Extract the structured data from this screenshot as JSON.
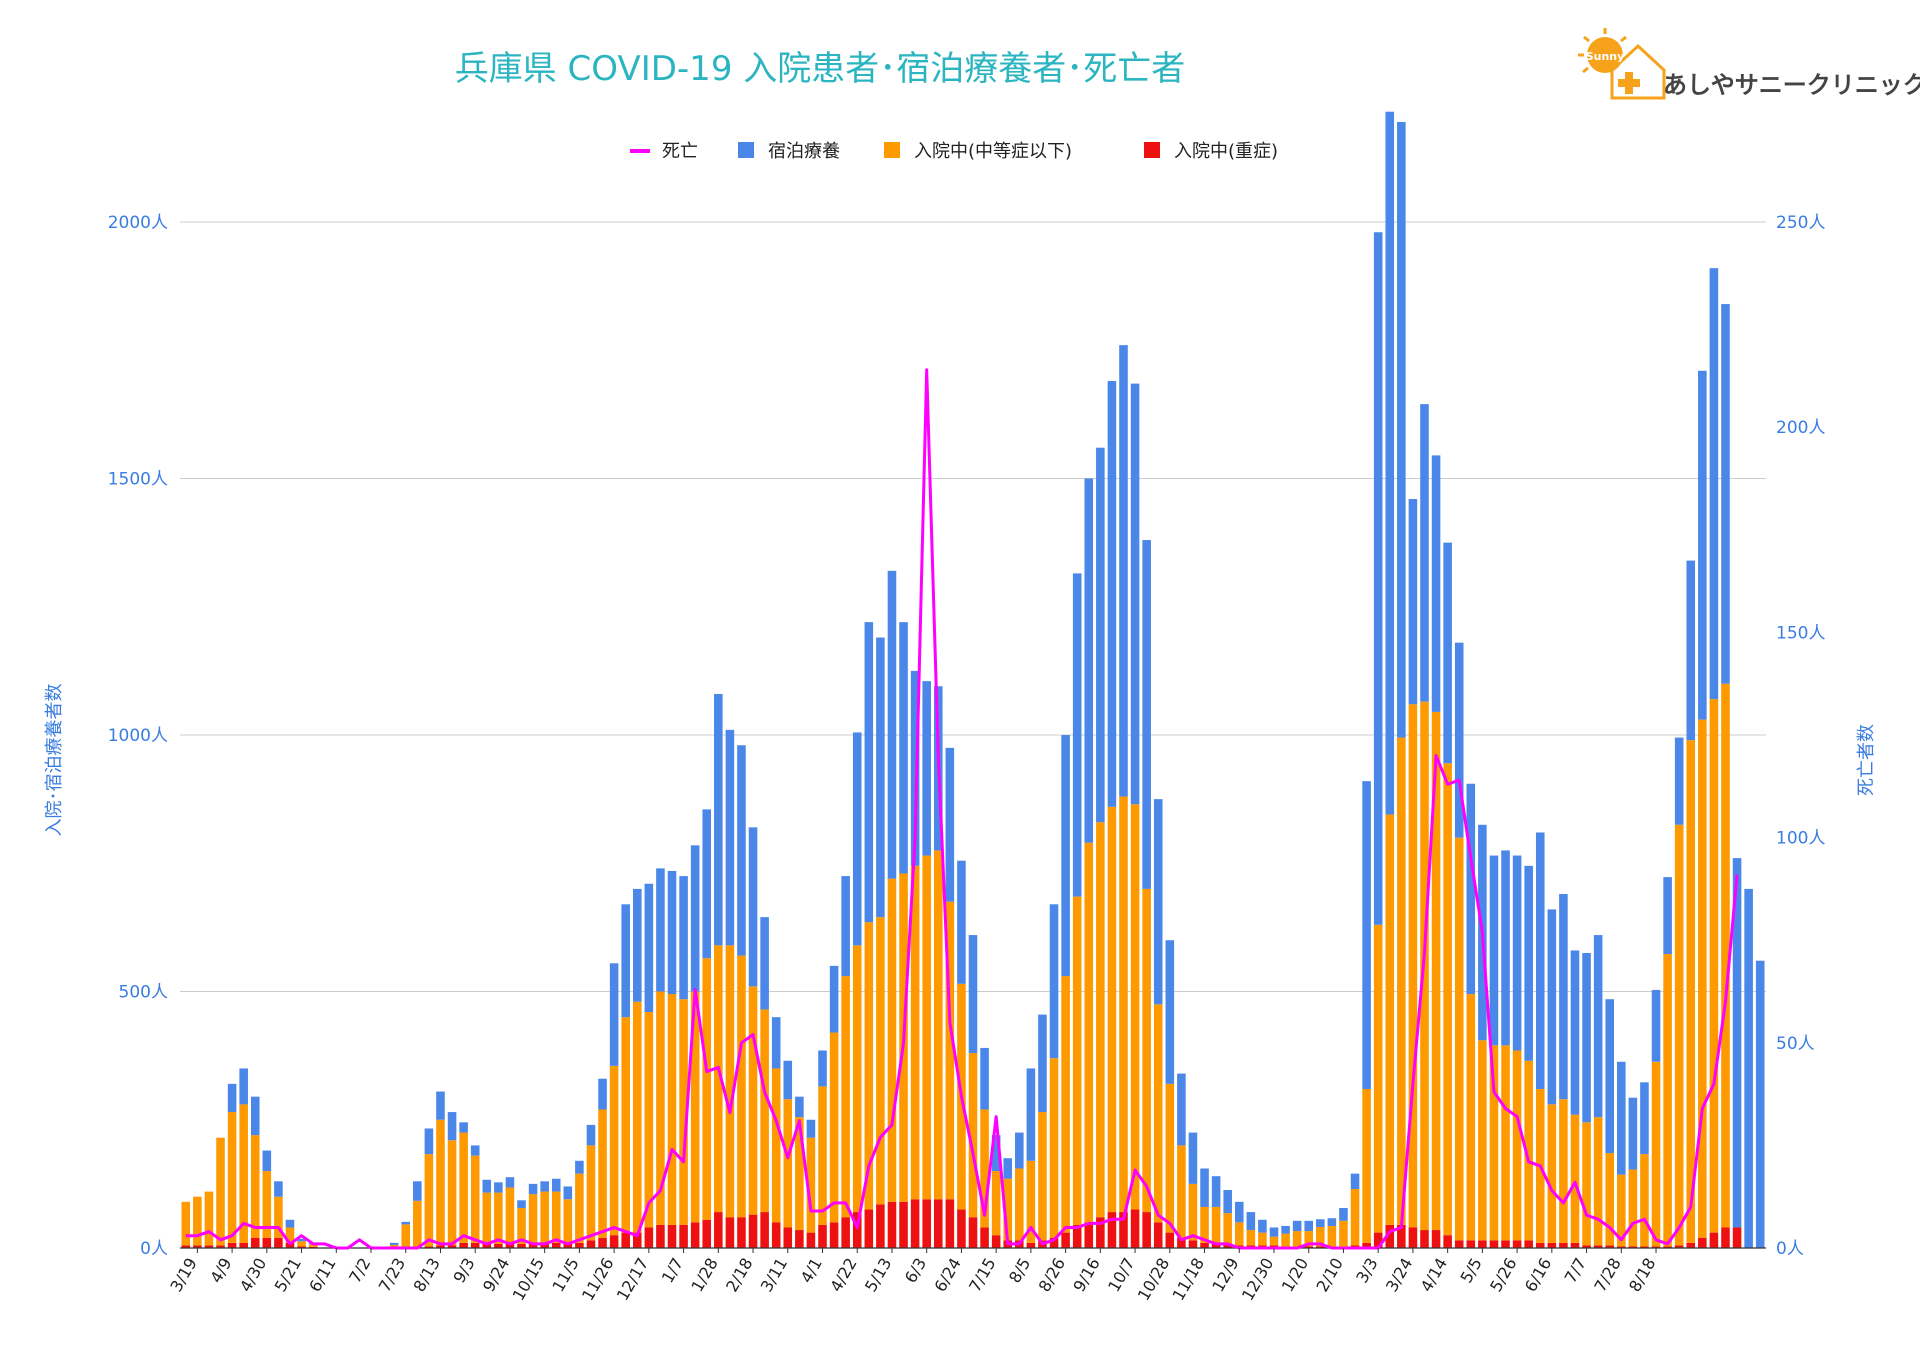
{
  "chart_data": {
    "type": "bar",
    "stacked": true,
    "title": "兵庫県  COVID-19 入院患者･宿泊療養者･死亡者",
    "ylabel": "入院･宿泊療養者数",
    "y2label": "死亡者数",
    "ylim": [
      0,
      2000
    ],
    "y2lim": [
      0,
      250
    ],
    "yticks": [
      "0人",
      "500人",
      "1000人",
      "1500人",
      "2000人"
    ],
    "y2ticks": [
      "0人",
      "50人",
      "100人",
      "150人",
      "200人",
      "250人"
    ],
    "grid": true,
    "legend_position": "top",
    "series": [
      {
        "name": "死亡",
        "type": "line",
        "axis": "right",
        "color": "#ff00ff",
        "values": [
          3,
          3,
          4,
          2,
          3,
          6,
          5,
          5,
          5,
          1,
          3,
          1,
          1,
          0,
          0,
          2,
          0,
          0,
          0,
          0,
          0,
          2,
          1,
          1,
          3,
          2,
          1,
          2,
          1,
          2,
          1,
          1,
          2,
          1,
          2,
          3,
          4,
          5,
          4,
          3,
          11,
          14,
          24,
          21,
          63,
          43,
          44,
          33,
          50,
          52,
          38,
          31,
          22,
          31,
          9,
          9,
          11,
          11,
          5,
          20,
          27,
          30,
          50,
          100,
          214,
          120,
          55,
          37,
          23,
          8,
          32,
          1,
          1,
          5,
          1,
          2,
          5,
          5,
          6,
          6,
          7,
          7,
          19,
          15,
          8,
          6,
          2,
          3,
          2,
          1,
          1,
          0,
          0,
          0,
          0,
          0,
          0,
          1,
          1,
          0,
          0,
          0,
          0,
          0,
          4,
          5,
          40,
          72,
          120,
          113,
          114,
          95,
          77,
          38,
          34,
          32,
          21,
          20,
          14,
          11,
          16,
          8,
          7,
          5,
          2,
          6,
          7,
          2,
          1,
          5,
          10,
          34,
          40,
          60,
          91
        ]
      },
      {
        "name": "宿泊療養",
        "color": "#4a87e8",
        "values": [
          0,
          0,
          0,
          0,
          55,
          70,
          75,
          40,
          30,
          15,
          5,
          3,
          0,
          0,
          0,
          0,
          0,
          0,
          4,
          5,
          38,
          50,
          55,
          55,
          20,
          20,
          25,
          20,
          20,
          15,
          20,
          20,
          25,
          25,
          25,
          40,
          60,
          200,
          220,
          220,
          250,
          240,
          240,
          240,
          285,
          290,
          490,
          420,
          410,
          310,
          180,
          100,
          75,
          40,
          35,
          70,
          130,
          195,
          415,
          585,
          545,
          600,
          490,
          380,
          340,
          320,
          300,
          240,
          230,
          120,
          70,
          40,
          70,
          180,
          190,
          300,
          470,
          630,
          710,
          730,
          830,
          880,
          820,
          680,
          400,
          280,
          140,
          100,
          75,
          60,
          45,
          40,
          35,
          25,
          18,
          15,
          20,
          20,
          15,
          15,
          25,
          30,
          600,
          1350,
          1370,
          1200,
          400,
          580,
          500,
          430,
          380,
          410,
          420,
          370,
          380,
          380,
          380,
          500,
          380,
          400,
          320,
          330,
          355,
          300,
          220,
          140,
          140,
          140,
          150,
          170,
          350,
          680,
          840,
          740,
          720,
          700,
          560
        ]
      },
      {
        "name": "入院中(中等症以下)",
        "color": "#ff9900",
        "values": [
          85,
          95,
          105,
          210,
          255,
          270,
          200,
          130,
          80,
          30,
          10,
          5,
          0,
          0,
          0,
          0,
          0,
          0,
          5,
          45,
          90,
          180,
          245,
          205,
          215,
          170,
          100,
          100,
          110,
          70,
          95,
          100,
          100,
          85,
          135,
          185,
          250,
          330,
          420,
          450,
          420,
          455,
          450,
          440,
          450,
          510,
          520,
          530,
          510,
          445,
          395,
          300,
          250,
          220,
          185,
          270,
          370,
          470,
          520,
          560,
          560,
          630,
          640,
          650,
          670,
          680,
          580,
          440,
          320,
          230,
          125,
          120,
          140,
          160,
          250,
          350,
          500,
          640,
          740,
          770,
          790,
          810,
          790,
          630,
          425,
          290,
          180,
          110,
          70,
          70,
          60,
          45,
          30,
          25,
          17,
          25,
          30,
          30,
          38,
          40,
          50,
          110,
          300,
          600,
          800,
          950,
          1020,
          1030,
          1010,
          920,
          785,
          480,
          390,
          380,
          380,
          370,
          350,
          300,
          270,
          280,
          250,
          240,
          250,
          180,
          140,
          150,
          180,
          360,
          570,
          820,
          980,
          1010,
          1040,
          1060
        ]
      },
      {
        "name": "入院中(重症)",
        "color": "#ee1111",
        "values": [
          5,
          5,
          5,
          5,
          10,
          10,
          20,
          20,
          20,
          10,
          3,
          2,
          0,
          0,
          0,
          0,
          0,
          0,
          1,
          1,
          2,
          3,
          5,
          5,
          10,
          10,
          8,
          8,
          8,
          8,
          10,
          10,
          10,
          10,
          10,
          15,
          20,
          25,
          30,
          30,
          40,
          45,
          45,
          45,
          50,
          55,
          70,
          60,
          60,
          65,
          70,
          50,
          40,
          35,
          30,
          45,
          50,
          60,
          70,
          75,
          85,
          90,
          90,
          95,
          95,
          95,
          95,
          75,
          60,
          40,
          25,
          15,
          15,
          10,
          15,
          20,
          30,
          45,
          50,
          60,
          70,
          70,
          75,
          70,
          50,
          30,
          20,
          15,
          10,
          10,
          8,
          5,
          5,
          5,
          5,
          3,
          3,
          3,
          3,
          3,
          3,
          5,
          10,
          30,
          45,
          45,
          40,
          35,
          35,
          25,
          15,
          15,
          15,
          15,
          15,
          15,
          15,
          10,
          10,
          10,
          10,
          5,
          5,
          5,
          3,
          3,
          3,
          3,
          3,
          5,
          10,
          20,
          30,
          40,
          40
        ]
      }
    ],
    "x_tick_labels": [
      "3/19",
      "4/9",
      "4/30",
      "5/21",
      "6/11",
      "7/2",
      "7/23",
      "8/13",
      "9/3",
      "9/24",
      "10/15",
      "11/5",
      "11/26",
      "12/17",
      "1/7",
      "1/28",
      "2/18",
      "3/11",
      "4/1",
      "4/22",
      "5/13",
      "6/3",
      "6/24",
      "7/15",
      "8/5",
      "8/26",
      "9/16",
      "10/7",
      "10/28",
      "11/18",
      "12/9",
      "12/30",
      "1/20",
      "2/10",
      "3/3",
      "3/24",
      "4/14",
      "5/5",
      "5/26",
      "6/16",
      "7/7",
      "7/28",
      "8/18"
    ]
  },
  "logo": {
    "text": "あしやサニークリニック",
    "badge": "Sunny"
  }
}
